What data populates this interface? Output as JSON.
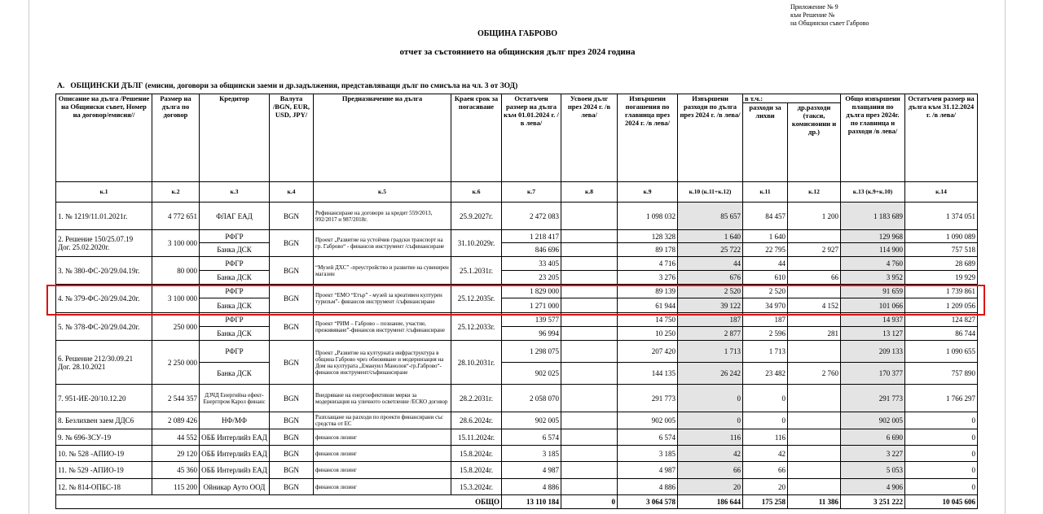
{
  "header": {
    "appendix": [
      "Приложение № 9",
      "към Решение №",
      "на Общински съвет Габрово"
    ],
    "title": "ОБЩИНА ГАБРОВО",
    "subtitle": "отчет за състоянието на общинския дълг през 2024 година",
    "section": "А.   ОБЩИНСКИ ДЪЛГ (емисии, договори за общински заеми и др.задължения, представляващи дълг по смисъла на чл. 3 от ЗОД)"
  },
  "table": {
    "columns": [
      "Описание на дълга /Решение на Общински съвет, Номер на договор/емисия//",
      "Размер на дълга по договор",
      "Кредитор",
      "Валута /BGN, EUR, USD, JPY/",
      "Предназначение на дълга",
      "Краен срок за погасяване",
      "Остатъчен размер на дълга към 01.01.2024 г. /в лева/",
      "Усвоен дълг през 2024 г. /в лева/",
      "Извършени погашения по главница през 2024 г. /в лева/",
      "Извършени разходи по дълга през 2024 г. /в лева/",
      "разходи за лихви",
      "др.разходи (такси, комисионни и др.)",
      "Общо извършени плащания по дълга през 2024г. по главница и разходи /в лева/",
      "Остатъчен размер на дълга към 31.12.2024 г. /в лева/"
    ],
    "group_label": "в т.ч.:",
    "codes": [
      "к.1",
      "к.2",
      "к.3",
      "к.4",
      "к.5",
      "к.6",
      "к.7",
      "к.8",
      "к.9",
      "к.10 (к.11+к.12)",
      "к.11",
      "к.12",
      "к.13 (к.9+к.10)",
      "к.14"
    ],
    "rows": [
      {
        "description": "1.  № 1219/11.01.2021г.",
        "size": "4 772 651",
        "currency": "BGN",
        "purpose": "Рефинансиране на договори за кредит 559/2013, 992/2017 и 987/2018г.",
        "maturity": "25.9.2027г.",
        "lenders": [
          {
            "creditor": "ФЛАГ ЕАД",
            "values": [
              "2 472 083",
              null,
              "1 098 032",
              "85 657",
              "84 457",
              "1 200",
              "1 183 689",
              "1 374 051"
            ]
          }
        ]
      },
      {
        "description": "2. Решение 150/25.07.19\nДог. 25.02.2020г.",
        "size": "3 100 000",
        "currency": "BGN",
        "purpose": "Проект „Развитие на устойчив градски транспорт на гр. Габрово“ - финансов инструмент /съфинансиране",
        "maturity": "31.10.2029г.",
        "lenders": [
          {
            "creditor": "РФГР",
            "values": [
              "1 218 417",
              null,
              "128 328",
              "1 640",
              "1 640",
              null,
              "129 968",
              "1 090 089"
            ]
          },
          {
            "creditor": "Банка ДСК",
            "values": [
              "846 696",
              null,
              "89 178",
              "25 722",
              "22 795",
              "2 927",
              "114 900",
              "757 518"
            ]
          }
        ]
      },
      {
        "description": "3. № 380-ФС-20/29.04.19г.",
        "size": "80 000",
        "currency": "BGN",
        "purpose": "“Музей ДХС” -преустройство и развитие на сувенирен магазин",
        "maturity": "25.1.2031г.",
        "lenders": [
          {
            "creditor": "РФГР",
            "values": [
              "33 405",
              null,
              "4 716",
              "44",
              "44",
              null,
              "4 760",
              "28 689"
            ]
          },
          {
            "creditor": "Банка ДСК",
            "values": [
              "23 205",
              null,
              "3 276",
              "676",
              "610",
              "66",
              "3 952",
              "19 929"
            ]
          }
        ]
      },
      {
        "description": "4. № 379-ФС-20/29.04.20г.",
        "size": "3 100 000",
        "currency": "BGN",
        "purpose": "Проект “ЕМО “Етър” - музей за креативен културен туризъм”- финансов инструмент /съфинансиране",
        "maturity": "25.12.2035г.",
        "lenders": [
          {
            "creditor": "РФГР",
            "values": [
              "1 829 000",
              null,
              "89 139",
              "2 520",
              "2 520",
              null,
              "91 659",
              "1 739 861"
            ]
          },
          {
            "creditor": "Банка ДСК",
            "values": [
              "1 271 000",
              null,
              "61 944",
              "39 122",
              "34 970",
              "4 152",
              "101 066",
              "1 209 056"
            ]
          }
        ]
      },
      {
        "description": "5. № 378-ФС-20/29.04.20г.",
        "size": "250 000",
        "currency": "BGN",
        "purpose": "Проект “РИМ – Габрово – познание, участие, преживяване”-финансов инструмент /съфинансиране",
        "maturity": "25.12.2033г.",
        "lenders": [
          {
            "creditor": "РФГР",
            "values": [
              "139 577",
              null,
              "14 750",
              "187",
              "187",
              null,
              "14 937",
              "124 827"
            ]
          },
          {
            "creditor": "Банка ДСК",
            "values": [
              "96 994",
              null,
              "10 250",
              "2 877",
              "2 596",
              "281",
              "13 127",
              "86 744"
            ]
          }
        ]
      },
      {
        "description": "6. Решение 212/30.09.21\nДог.  28.10.2021",
        "size": "2 250 000",
        "currency": "BGN",
        "purpose": "Проект „Развитие на културната инфраструктура в община Габрово чрез обновяване и модернизация на Дом на културата „Емануил Манолов“-гр.Габрово“- финансов инструмент/съфинансиране",
        "maturity": "28.10.2031г.",
        "lenders": [
          {
            "creditor": "РФГР",
            "values": [
              "1 298 075",
              null,
              "207 420",
              "1 713",
              "1 713",
              null,
              "209 133",
              "1 090 655"
            ]
          },
          {
            "creditor": "Банка ДСК",
            "values": [
              "902 025",
              null,
              "144 135",
              "26 242",
              "23 482",
              "2 760",
              "170 377",
              "757 890"
            ]
          }
        ]
      },
      {
        "description": "7.  951-ИЕ-20/10.12.20",
        "size": "2 544 357",
        "currency": "BGN",
        "purpose": "Внедряване на енергоефективни мерки за модернизация на уличното осветление /ЕСКО договор",
        "maturity": "28.2.2031г.",
        "lenders": [
          {
            "creditor": "ДЗЧД Енергийна ефект- Енергпром Карол финанс",
            "values": [
              "2 058 070",
              null,
              "291 773",
              "0",
              "0",
              null,
              "291 773",
              "1 766 297"
            ]
          }
        ]
      },
      {
        "description": "8. Безлихвен заем ДДС6",
        "size": "2 089 426",
        "currency": "BGN",
        "purpose": "Разплащане на разходи по проекти финансирани със средства от ЕС",
        "maturity": "28.6.2024г.",
        "lenders": [
          {
            "creditor": "НФ/МФ",
            "values": [
              "902 005",
              null,
              "902 005",
              "0",
              "0",
              null,
              "902 005",
              "0"
            ]
          }
        ]
      },
      {
        "description": "9. № 696-ЗСУ-19",
        "size": "44 552",
        "currency": "BGN",
        "purpose": "финансов лизинг",
        "maturity": "15.11.2024г.",
        "lenders": [
          {
            "creditor": "ОББ Интерлийз ЕАД",
            "values": [
              "6 574",
              null,
              "6 574",
              "116",
              "116",
              null,
              "6 690",
              "0"
            ]
          }
        ]
      },
      {
        "description": "10. № 528 -АПИО-19",
        "size": "29 120",
        "currency": "BGN",
        "purpose": "финансов лизинг",
        "maturity": "15.8.2024г.",
        "lenders": [
          {
            "creditor": "ОББ Интерлийз ЕАД",
            "values": [
              "3 185",
              null,
              "3 185",
              "42",
              "42",
              null,
              "3 227",
              "0"
            ]
          }
        ]
      },
      {
        "description": "11.  № 529 -АПИО-19",
        "size": "45 360",
        "currency": "BGN",
        "purpose": "финансов лизинг",
        "maturity": "15.8.2024г.",
        "lenders": [
          {
            "creditor": "ОББ Интерлийз ЕАД",
            "values": [
              "4 987",
              null,
              "4 987",
              "66",
              "66",
              null,
              "5 053",
              "0"
            ]
          }
        ]
      },
      {
        "description": "12.  № 814-ОПБС-18",
        "size": "115 200",
        "currency": "BGN",
        "purpose": "финансов лизинг",
        "maturity": "15.3.2024г.",
        "lenders": [
          {
            "creditor": "Ойникар Ауто ООД",
            "values": [
              "4 886",
              null,
              "4 886",
              "20",
              "20",
              null,
              "4 906",
              "0"
            ]
          }
        ]
      }
    ],
    "total": {
      "label": "ОБЩО",
      "values": [
        "13 110 184",
        "0",
        "3 064 578",
        "186 644",
        "175 258",
        "11 386",
        "3 251 222",
        "10 045 606"
      ]
    }
  }
}
